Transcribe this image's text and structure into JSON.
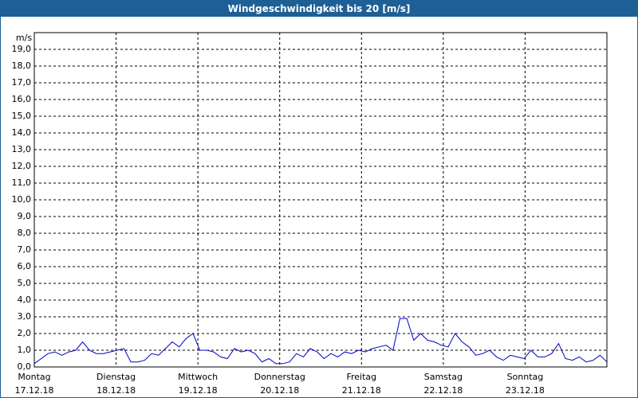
{
  "chart_data": {
    "type": "line",
    "title": "Windgeschwindigkeit bis 20 [m/s]",
    "y_label": "m/s",
    "color": "#0000cc",
    "grid": true,
    "ylim": [
      0,
      20
    ],
    "yticks": [
      {
        "value": 0,
        "label": "0,0"
      },
      {
        "value": 1,
        "label": "1,0"
      },
      {
        "value": 2,
        "label": "2,0"
      },
      {
        "value": 3,
        "label": "3,0"
      },
      {
        "value": 4,
        "label": "4,0"
      },
      {
        "value": 5,
        "label": "5,0"
      },
      {
        "value": 6,
        "label": "6,0"
      },
      {
        "value": 7,
        "label": "7,0"
      },
      {
        "value": 8,
        "label": "8,0"
      },
      {
        "value": 9,
        "label": "9,0"
      },
      {
        "value": 10,
        "label": "10,0"
      },
      {
        "value": 11,
        "label": "11,0"
      },
      {
        "value": 12,
        "label": "12,0"
      },
      {
        "value": 13,
        "label": "13,0"
      },
      {
        "value": 14,
        "label": "14,0"
      },
      {
        "value": 15,
        "label": "15,0"
      },
      {
        "value": 16,
        "label": "16,0"
      },
      {
        "value": 17,
        "label": "17,0"
      },
      {
        "value": 18,
        "label": "18,0"
      },
      {
        "value": 19,
        "label": "19,0"
      }
    ],
    "xlim": [
      0,
      7
    ],
    "xticks": [
      {
        "value": 0,
        "label": "17.12.18"
      },
      {
        "value": 1,
        "label": "18.12.18"
      },
      {
        "value": 2,
        "label": "19.12.18"
      },
      {
        "value": 3,
        "label": "20.12.18"
      },
      {
        "value": 4,
        "label": "21.12.18"
      },
      {
        "value": 5,
        "label": "22.12.18"
      },
      {
        "value": 6,
        "label": "23.12.18"
      }
    ],
    "day_labels": [
      "Montag",
      "Dienstag",
      "Mittwoch",
      "Donnerstag",
      "Freitag",
      "Samstag",
      "Sonntag"
    ],
    "values": [
      0.2,
      0.5,
      0.8,
      0.9,
      0.7,
      0.9,
      1.0,
      1.5,
      1.0,
      0.8,
      0.8,
      0.9,
      1.0,
      1.1,
      0.3,
      0.3,
      0.4,
      0.8,
      0.7,
      1.1,
      1.5,
      1.2,
      1.7,
      2.0,
      1.0,
      1.0,
      0.9,
      0.6,
      0.5,
      1.1,
      0.9,
      1.0,
      0.8,
      0.3,
      0.5,
      0.2,
      0.2,
      0.3,
      0.8,
      0.6,
      1.1,
      0.9,
      0.5,
      0.8,
      0.6,
      0.9,
      0.8,
      1.0,
      0.9,
      1.1,
      1.2,
      1.3,
      1.0,
      2.9,
      2.9,
      1.6,
      2.0,
      1.6,
      1.5,
      1.3,
      1.2,
      2.0,
      1.5,
      1.2,
      0.7,
      0.8,
      1.0,
      0.6,
      0.4,
      0.7,
      0.6,
      0.5,
      1.0,
      0.6,
      0.6,
      0.8,
      1.4,
      0.5,
      0.4,
      0.6,
      0.3,
      0.4,
      0.7,
      0.3
    ]
  }
}
